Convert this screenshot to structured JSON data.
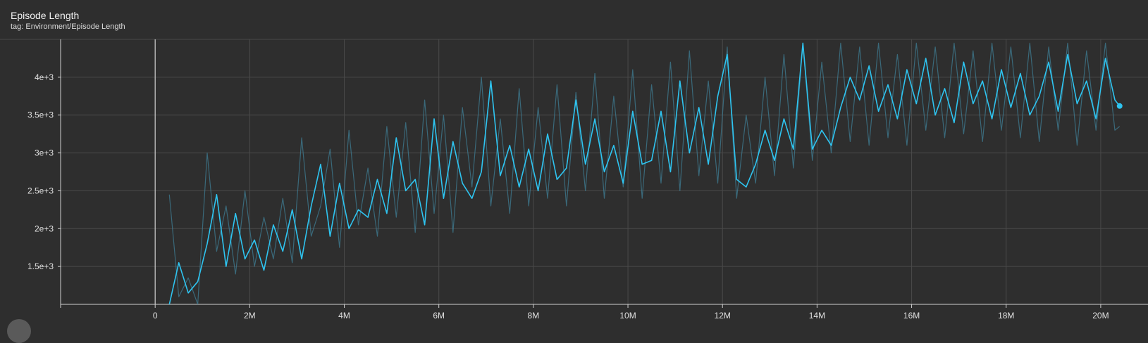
{
  "card": {
    "title": "Episode Length",
    "tag": "tag: Environment/Episode Length"
  },
  "colors": {
    "background": "#2e2e2e",
    "smoothed": "#2ec4f0",
    "raw": "#3f7d94",
    "grid": "#4a4a4a",
    "zero_line": "#d0d0d0",
    "text": "#e0e0e0"
  },
  "chart_data": {
    "type": "line",
    "title": "Episode Length",
    "xlabel": "",
    "ylabel": "",
    "xlim": [
      -2000000,
      21000000
    ],
    "ylim": [
      1000,
      4500
    ],
    "grid": true,
    "x_ticks": [
      0,
      2000000,
      4000000,
      6000000,
      8000000,
      10000000,
      12000000,
      14000000,
      16000000,
      18000000,
      20000000
    ],
    "x_tick_labels": [
      "0",
      "2M",
      "4M",
      "6M",
      "8M",
      "10M",
      "12M",
      "14M",
      "16M",
      "18M",
      "20M"
    ],
    "y_ticks": [
      1500,
      2000,
      2500,
      3000,
      3500,
      4000
    ],
    "y_tick_labels": [
      "1.5e+3",
      "2e+3",
      "2.5e+3",
      "3e+3",
      "3.5e+3",
      "4e+3"
    ],
    "series": [
      {
        "role": "smoothed",
        "x": [
          300000,
          500000,
          700000,
          900000,
          1100000,
          1300000,
          1500000,
          1700000,
          1900000,
          2100000,
          2300000,
          2500000,
          2700000,
          2900000,
          3100000,
          3300000,
          3500000,
          3700000,
          3900000,
          4100000,
          4300000,
          4500000,
          4700000,
          4900000,
          5100000,
          5300000,
          5500000,
          5700000,
          5900000,
          6100000,
          6300000,
          6500000,
          6700000,
          6900000,
          7100000,
          7300000,
          7500000,
          7700000,
          7900000,
          8100000,
          8300000,
          8500000,
          8700000,
          8900000,
          9100000,
          9300000,
          9500000,
          9700000,
          9900000,
          10100000,
          10300000,
          10500000,
          10700000,
          10900000,
          11100000,
          11300000,
          11500000,
          11700000,
          11900000,
          12100000,
          12300000,
          12500000,
          12700000,
          12900000,
          13100000,
          13300000,
          13500000,
          13700000,
          13900000,
          14100000,
          14300000,
          14500000,
          14700000,
          14900000,
          15100000,
          15300000,
          15500000,
          15700000,
          15900000,
          16100000,
          16300000,
          16500000,
          16700000,
          16900000,
          17100000,
          17300000,
          17500000,
          17700000,
          17900000,
          18100000,
          18300000,
          18500000,
          18700000,
          18900000,
          19100000,
          19300000,
          19500000,
          19700000,
          19900000,
          20100000,
          20300000,
          20400000
        ],
        "values": [
          1000,
          1550,
          1150,
          1300,
          1800,
          2450,
          1500,
          2200,
          1600,
          1850,
          1450,
          2050,
          1700,
          2250,
          1600,
          2300,
          2850,
          1900,
          2600,
          2000,
          2250,
          2150,
          2650,
          2200,
          3200,
          2500,
          2650,
          2050,
          3450,
          2400,
          3150,
          2600,
          2400,
          2750,
          3950,
          2700,
          3100,
          2550,
          3050,
          2500,
          3250,
          2650,
          2800,
          3700,
          2850,
          3450,
          2750,
          3100,
          2600,
          3550,
          2850,
          2900,
          3550,
          2750,
          3950,
          3000,
          3600,
          2850,
          3750,
          4300,
          2650,
          2550,
          2850,
          3300,
          2900,
          3450,
          3050,
          4450,
          3050,
          3300,
          3100,
          3600,
          4000,
          3700,
          4150,
          3550,
          3900,
          3450,
          4100,
          3650,
          4250,
          3500,
          3850,
          3400,
          4200,
          3650,
          3950,
          3450,
          4100,
          3600,
          4050,
          3500,
          3750,
          4200,
          3550,
          4300,
          3650,
          3950,
          3450,
          4250,
          3700,
          3620
        ]
      },
      {
        "role": "raw",
        "x": [
          300000,
          500000,
          700000,
          900000,
          1100000,
          1300000,
          1500000,
          1700000,
          1900000,
          2100000,
          2300000,
          2500000,
          2700000,
          2900000,
          3100000,
          3300000,
          3500000,
          3700000,
          3900000,
          4100000,
          4300000,
          4500000,
          4700000,
          4900000,
          5100000,
          5300000,
          5500000,
          5700000,
          5900000,
          6100000,
          6300000,
          6500000,
          6700000,
          6900000,
          7100000,
          7300000,
          7500000,
          7700000,
          7900000,
          8100000,
          8300000,
          8500000,
          8700000,
          8900000,
          9100000,
          9300000,
          9500000,
          9700000,
          9900000,
          10100000,
          10300000,
          10500000,
          10700000,
          10900000,
          11100000,
          11300000,
          11500000,
          11700000,
          11900000,
          12100000,
          12300000,
          12500000,
          12700000,
          12900000,
          13100000,
          13300000,
          13500000,
          13700000,
          13900000,
          14100000,
          14300000,
          14500000,
          14700000,
          14900000,
          15100000,
          15300000,
          15500000,
          15700000,
          15900000,
          16100000,
          16300000,
          16500000,
          16700000,
          16900000,
          17100000,
          17300000,
          17500000,
          17700000,
          17900000,
          18100000,
          18300000,
          18500000,
          18700000,
          18900000,
          19100000,
          19300000,
          19500000,
          19700000,
          19900000,
          20100000,
          20300000,
          20400000
        ],
        "values": [
          2450,
          1100,
          1350,
          1000,
          3000,
          1700,
          2300,
          1400,
          2500,
          1500,
          2150,
          1600,
          2400,
          1550,
          3200,
          1900,
          2300,
          3050,
          1750,
          3300,
          2050,
          2800,
          1900,
          3350,
          2150,
          3400,
          1950,
          3700,
          2200,
          3500,
          1950,
          3600,
          2550,
          4000,
          2300,
          3450,
          2200,
          3850,
          2300,
          3600,
          2400,
          3900,
          2300,
          3800,
          2500,
          4050,
          2400,
          3750,
          2550,
          4100,
          2400,
          3900,
          2600,
          4200,
          2500,
          4350,
          2700,
          3950,
          2600,
          4400,
          2400,
          3500,
          2600,
          4000,
          2700,
          4300,
          2800,
          4450,
          2900,
          4200,
          3000,
          4450,
          3150,
          4400,
          3100,
          4450,
          3200,
          4300,
          3100,
          4450,
          3300,
          4400,
          3200,
          4450,
          3250,
          4350,
          3150,
          4450,
          3300,
          4400,
          3200,
          4450,
          3150,
          4400,
          3300,
          4450,
          3100,
          4350,
          3300,
          4450,
          3300,
          3350
        ]
      }
    ]
  }
}
